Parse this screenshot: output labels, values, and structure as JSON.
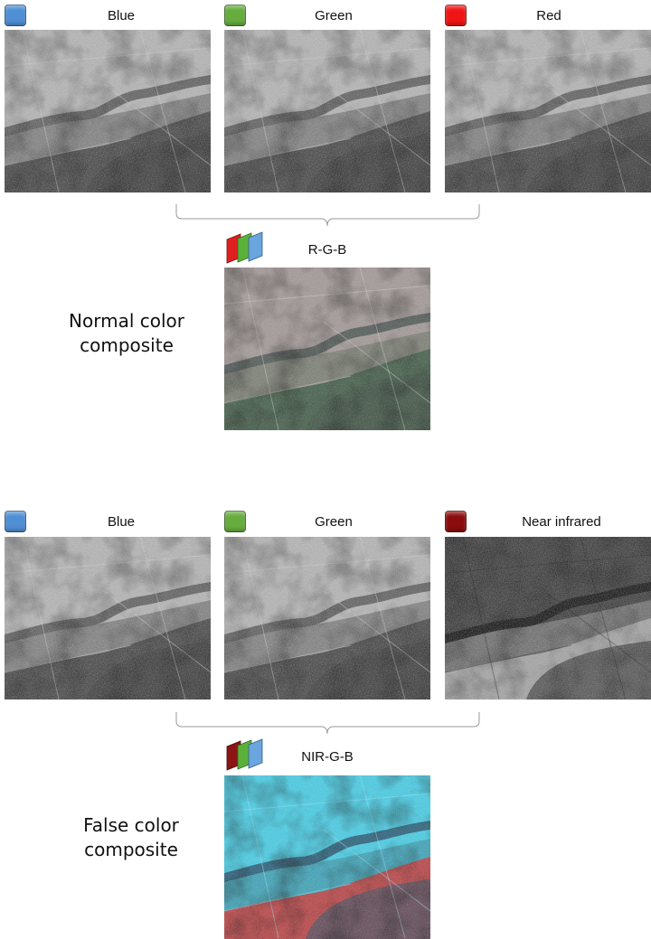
{
  "normal": {
    "bands": [
      {
        "label": "Blue",
        "color": "#4f8fd4"
      },
      {
        "label": "Green",
        "color": "#66ad3e"
      },
      {
        "label": "Red",
        "color": "#f01414"
      }
    ],
    "composite_label": "R-G-B",
    "caption_line1": "Normal color",
    "caption_line2": "composite"
  },
  "false_color": {
    "bands": [
      {
        "label": "Blue",
        "color": "#4f8fd4"
      },
      {
        "label": "Green",
        "color": "#66ad3e"
      },
      {
        "label": "Near infrared",
        "color": "#8b0d0d"
      }
    ],
    "composite_label": "NIR-G-B",
    "caption_line1": "False color",
    "caption_line2": "composite"
  },
  "icons": {
    "band_swatch": "band-color-swatch-icon",
    "layer_stack": "layer-stack-icon"
  }
}
